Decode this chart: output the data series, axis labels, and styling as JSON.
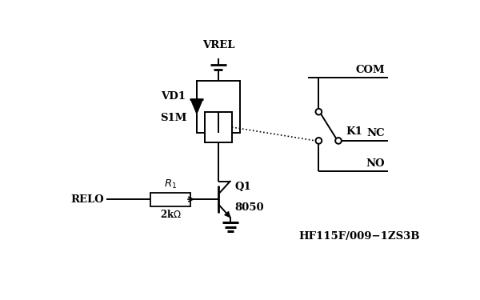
{
  "bg_color": "#ffffff",
  "line_color": "#000000",
  "fig_width": 6.0,
  "fig_height": 3.75,
  "dpi": 100,
  "xlim": [
    0,
    6.0
  ],
  "ylim": [
    0,
    3.75
  ]
}
